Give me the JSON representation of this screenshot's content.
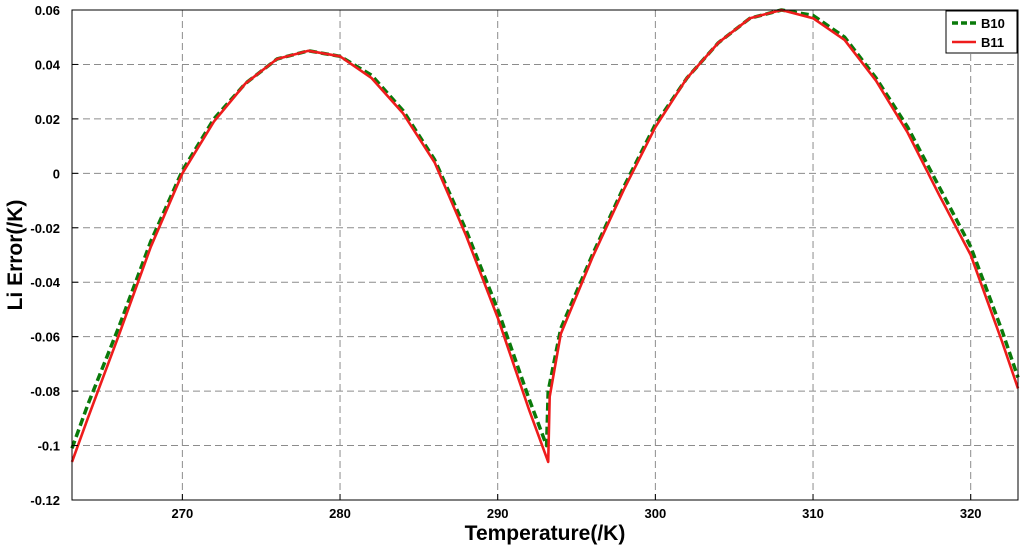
{
  "chart_data": {
    "type": "line",
    "title": "",
    "xlabel": "Temperature(/K)",
    "ylabel": "Li Error(/K)",
    "xlim": [
      263,
      323
    ],
    "ylim": [
      -0.12,
      0.06
    ],
    "xticks": [
      270,
      280,
      290,
      300,
      310,
      320
    ],
    "xtick_labels": [
      "270",
      "280",
      "290",
      "300",
      "310",
      "320"
    ],
    "yticks": [
      -0.12,
      -0.1,
      -0.08,
      -0.06,
      -0.04,
      -0.02,
      0,
      0.02,
      0.04,
      0.06
    ],
    "ytick_labels": [
      "-0.12",
      "-0.1",
      "-0.08",
      "-0.06",
      "-0.04",
      "-0.02",
      "0",
      "0.02",
      "0.04",
      "0.06"
    ],
    "grid": true,
    "legend_position": "top-right",
    "series": [
      {
        "name": "B10",
        "color": "#0a7a0a",
        "style": "dashed",
        "x": [
          263,
          264,
          266,
          268,
          270,
          272,
          274,
          276,
          278,
          280,
          282,
          284,
          286,
          288,
          290,
          292,
          293.1,
          293.2,
          294,
          296,
          298,
          300,
          302,
          304,
          306,
          308,
          310,
          312,
          314,
          316,
          318,
          320,
          322,
          323
        ],
        "y": [
          -0.101,
          -0.085,
          -0.056,
          -0.025,
          0.001,
          0.02,
          0.033,
          0.042,
          0.045,
          0.043,
          0.036,
          0.023,
          0.005,
          -0.021,
          -0.05,
          -0.083,
          -0.1,
          -0.08,
          -0.057,
          -0.03,
          -0.005,
          0.018,
          0.035,
          0.048,
          0.057,
          0.06,
          0.058,
          0.05,
          0.035,
          0.017,
          -0.005,
          -0.027,
          -0.058,
          -0.075
        ]
      },
      {
        "name": "B11",
        "color": "#ee1c1c",
        "style": "solid",
        "x": [
          263,
          264,
          266,
          268,
          270,
          272,
          274,
          276,
          278,
          280,
          282,
          284,
          286,
          288,
          290,
          292,
          293.2,
          293.3,
          294,
          296,
          298,
          300,
          302,
          304,
          306,
          308,
          310,
          312,
          314,
          316,
          318,
          320,
          322,
          323
        ],
        "y": [
          -0.106,
          -0.09,
          -0.059,
          -0.027,
          0.0,
          0.019,
          0.033,
          0.042,
          0.045,
          0.043,
          0.035,
          0.022,
          0.004,
          -0.023,
          -0.053,
          -0.087,
          -0.106,
          -0.082,
          -0.059,
          -0.031,
          -0.006,
          0.017,
          0.035,
          0.048,
          0.057,
          0.06,
          0.057,
          0.049,
          0.034,
          0.015,
          -0.008,
          -0.03,
          -0.062,
          -0.079
        ]
      }
    ]
  }
}
